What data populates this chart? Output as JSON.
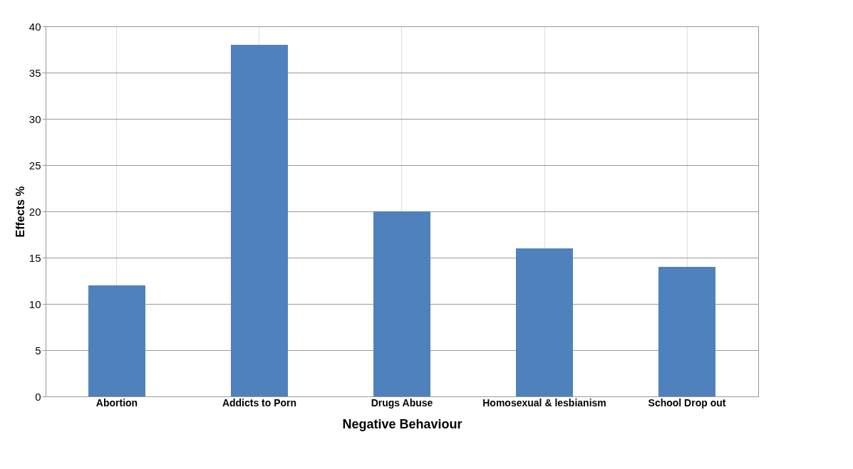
{
  "chart_data": {
    "type": "bar",
    "xlabel": "Negative Behaviour",
    "ylabel": "Effects %",
    "categories": [
      "Abortion",
      "Addicts to Porn",
      "Drugs Abuse",
      "Homosexual & lesbianism",
      "School Drop out"
    ],
    "values": [
      12,
      38,
      20,
      16,
      14
    ],
    "color": "#4f81bd",
    "ylim": [
      0,
      40
    ],
    "yticks": [
      0,
      5,
      10,
      15,
      20,
      25,
      30,
      35,
      40
    ],
    "grid": true
  }
}
